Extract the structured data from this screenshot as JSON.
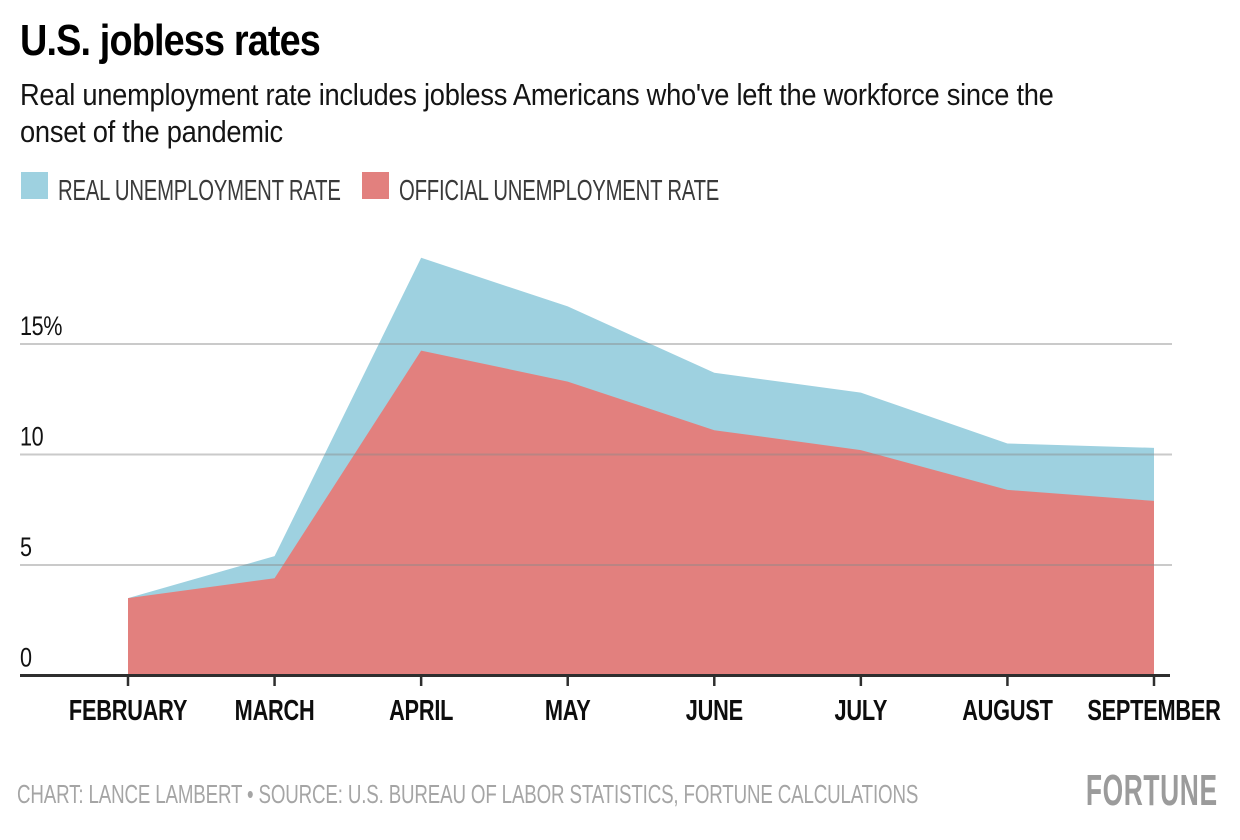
{
  "header": {
    "title": "U.S. jobless rates",
    "subtitle_line1": "Real unemployment rate includes jobless Americans who've left the workforce since the",
    "subtitle_line2": "onset of the pandemic"
  },
  "legend": [
    {
      "label": "REAL UNEMPLOYMENT RATE",
      "color": "#9ed1e0"
    },
    {
      "label": "OFFICIAL UNEMPLOYMENT RATE",
      "color": "#e2807e"
    }
  ],
  "chart_data": {
    "type": "area",
    "categories": [
      "FEBRUARY",
      "MARCH",
      "APRIL",
      "MAY",
      "JUNE",
      "JULY",
      "AUGUST",
      "SEPTEMBER"
    ],
    "series": [
      {
        "name": "REAL UNEMPLOYMENT RATE",
        "color": "#9ed1e0",
        "values": [
          3.5,
          5.4,
          18.9,
          16.7,
          13.7,
          12.8,
          10.5,
          10.3
        ]
      },
      {
        "name": "OFFICIAL UNEMPLOYMENT RATE",
        "color": "#e2807e",
        "values": [
          3.5,
          4.4,
          14.7,
          13.3,
          11.1,
          10.2,
          8.4,
          7.9
        ]
      }
    ],
    "yticks": [
      {
        "value": 15,
        "label": "15%"
      },
      {
        "value": 10,
        "label": "10"
      },
      {
        "value": 5,
        "label": "5"
      },
      {
        "value": 0,
        "label": "0"
      }
    ],
    "ylim": [
      0,
      19.7
    ],
    "grid": true,
    "grid_on_top": true,
    "legend_position": "top",
    "axis_color": "#2e2e2e",
    "grid_color": "#8a8a8a",
    "tick_label_color": "#111111"
  },
  "footer": {
    "credit": "CHART: LANCE LAMBERT • SOURCE: U.S. BUREAU OF LABOR STATISTICS, FORTUNE CALCULATIONS",
    "brand": "FORTUNE"
  }
}
